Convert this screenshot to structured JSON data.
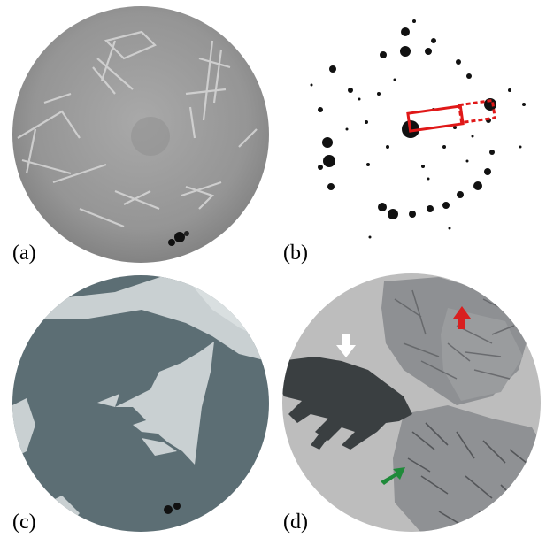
{
  "panels": [
    {
      "label": "(a)"
    },
    {
      "label": "(b)"
    },
    {
      "label": "(c)"
    },
    {
      "label": "(d)"
    }
  ],
  "colors": {
    "background": "#ffffff",
    "panel_a_base": "#9a9a9a",
    "panel_c_base": "#5c6e74",
    "panel_c_bright": "#c9d0d2",
    "panel_d_base": "#bdbdbd",
    "panel_d_dark": "#3a3f41",
    "arrow_white": "#ffffff",
    "arrow_red": "#d92020",
    "arrow_green": "#1f8a3a",
    "annotation_red": "#e01818"
  },
  "icons": {
    "arrow_white": "arrow-down-icon",
    "arrow_red": "arrow-up-icon",
    "arrow_green": "arrow-up-right-icon"
  }
}
